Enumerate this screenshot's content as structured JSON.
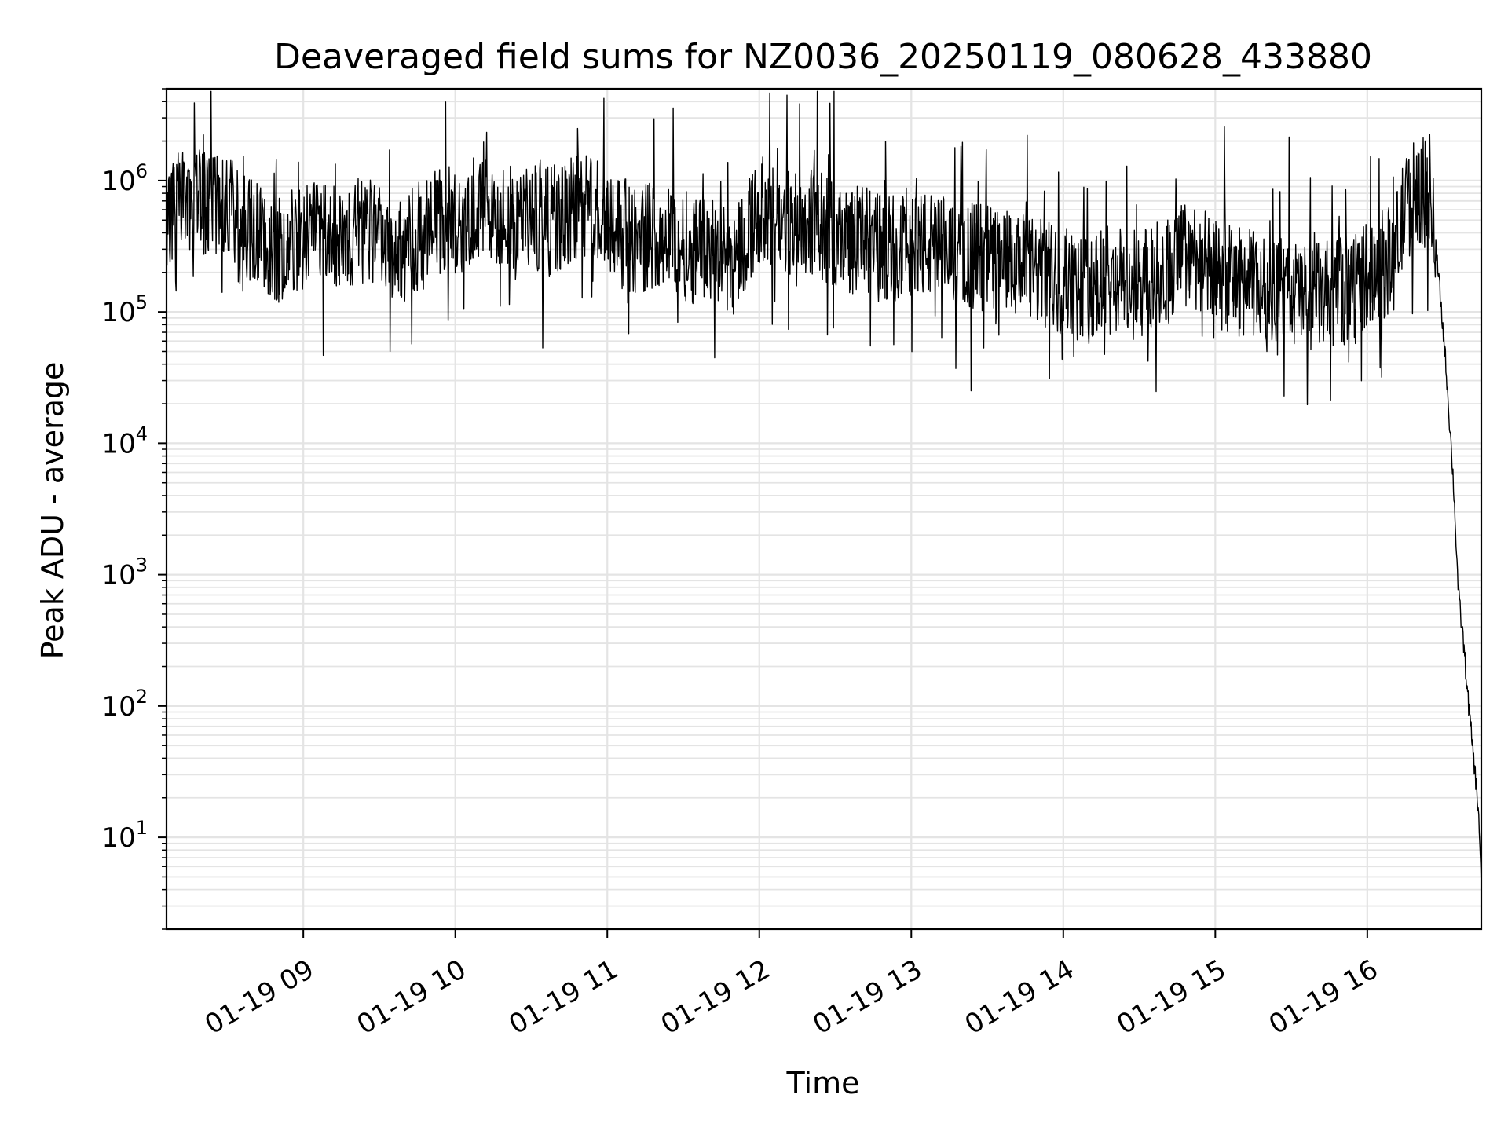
{
  "chart_data": {
    "type": "line",
    "title": "Deaveraged field sums for NZ0036_20250119_080628_433880",
    "xlabel": "Time",
    "ylabel": "Peak ADU - average",
    "yscale": "log",
    "ylim": [
      2,
      5000000
    ],
    "xlim": [
      "2025-01-19 08:06",
      "2025-01-19 16:45"
    ],
    "grid": true,
    "line_color": "#000000",
    "x_ticks": [
      {
        "label": "01-19 09",
        "time": "2025-01-19 09:00"
      },
      {
        "label": "01-19 10",
        "time": "2025-01-19 10:00"
      },
      {
        "label": "01-19 11",
        "time": "2025-01-19 11:00"
      },
      {
        "label": "01-19 12",
        "time": "2025-01-19 12:00"
      },
      {
        "label": "01-19 13",
        "time": "2025-01-19 13:00"
      },
      {
        "label": "01-19 14",
        "time": "2025-01-19 14:00"
      },
      {
        "label": "01-19 15",
        "time": "2025-01-19 15:00"
      },
      {
        "label": "01-19 16",
        "time": "2025-01-19 16:00"
      }
    ],
    "y_ticks": [
      {
        "value": 10,
        "base": "10",
        "exp": "1"
      },
      {
        "value": 100,
        "base": "10",
        "exp": "2"
      },
      {
        "value": 1000,
        "base": "10",
        "exp": "3"
      },
      {
        "value": 10000,
        "base": "10",
        "exp": "4"
      },
      {
        "value": 100000,
        "base": "10",
        "exp": "5"
      },
      {
        "value": 1000000,
        "base": "10",
        "exp": "6"
      }
    ],
    "series": [
      {
        "x": [
          "2025-01-19 08:06",
          "2025-01-19 08:15",
          "2025-01-19 08:25",
          "2025-01-19 08:30",
          "2025-01-19 08:35",
          "2025-01-19 08:40",
          "2025-01-19 08:45",
          "2025-01-19 08:50",
          "2025-01-19 09:00",
          "2025-01-19 09:10",
          "2025-01-19 09:20",
          "2025-01-19 09:30",
          "2025-01-19 09:40",
          "2025-01-19 09:50",
          "2025-01-19 10:00",
          "2025-01-19 10:10",
          "2025-01-19 10:20",
          "2025-01-19 10:30",
          "2025-01-19 10:40",
          "2025-01-19 10:50",
          "2025-01-19 11:00",
          "2025-01-19 11:10",
          "2025-01-19 11:20",
          "2025-01-19 11:30",
          "2025-01-19 11:40",
          "2025-01-19 11:50",
          "2025-01-19 12:00",
          "2025-01-19 12:10",
          "2025-01-19 12:20",
          "2025-01-19 12:30",
          "2025-01-19 12:40",
          "2025-01-19 12:50",
          "2025-01-19 13:00",
          "2025-01-19 13:10",
          "2025-01-19 13:20",
          "2025-01-19 13:30",
          "2025-01-19 13:40",
          "2025-01-19 13:50",
          "2025-01-19 14:00",
          "2025-01-19 14:10",
          "2025-01-19 14:20",
          "2025-01-19 14:30",
          "2025-01-19 14:40",
          "2025-01-19 14:50",
          "2025-01-19 15:00",
          "2025-01-19 15:10",
          "2025-01-19 15:20",
          "2025-01-19 15:30",
          "2025-01-19 15:40",
          "2025-01-19 15:50",
          "2025-01-19 16:00",
          "2025-01-19 16:10",
          "2025-01-19 16:15",
          "2025-01-19 16:20",
          "2025-01-19 16:25",
          "2025-01-19 16:28",
          "2025-01-19 16:31",
          "2025-01-19 16:34",
          "2025-01-19 16:36",
          "2025-01-19 16:38",
          "2025-01-19 16:40",
          "2025-01-19 16:42",
          "2025-01-19 16:44",
          "2025-01-19 16:45"
        ],
        "values": [
          600000,
          650000,
          700000,
          800000,
          400000,
          450000,
          350000,
          300000,
          400000,
          350000,
          420000,
          380000,
          300000,
          450000,
          500000,
          600000,
          550000,
          500000,
          480000,
          650000,
          550000,
          350000,
          400000,
          320000,
          280000,
          250000,
          600000,
          450000,
          500000,
          380000,
          350000,
          300000,
          350000,
          300000,
          280000,
          260000,
          220000,
          200000,
          170000,
          150000,
          180000,
          160000,
          200000,
          300000,
          190000,
          170000,
          150000,
          140000,
          130000,
          140000,
          200000,
          250000,
          600000,
          900000,
          700000,
          200000,
          40000,
          5000,
          700,
          300,
          100,
          40,
          15,
          4
        ]
      }
    ]
  }
}
